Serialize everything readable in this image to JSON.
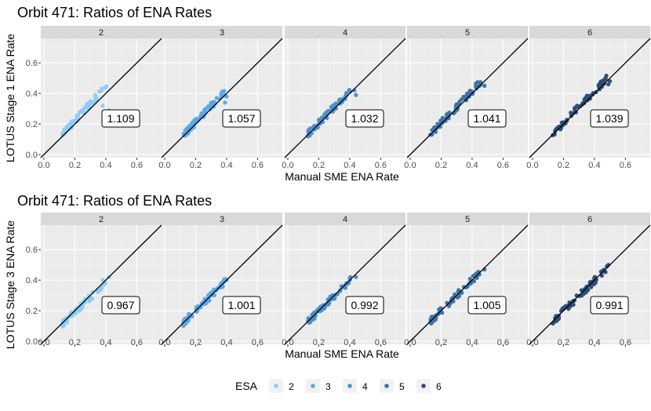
{
  "chart_data": [
    {
      "type": "scatter",
      "title": "Orbit 471: Ratios of ENA Rates",
      "xlabel": "Manual SME ENA Rate",
      "ylabel": "LOTUS Stage 1 ENA Rate",
      "xlim": [
        -0.02,
        0.76
      ],
      "ylim": [
        -0.02,
        0.76
      ],
      "x_ticks": [
        "0.0",
        "0.2",
        "0.4",
        "0.6"
      ],
      "y_ticks": [
        "0.0",
        "0.2",
        "0.4",
        "0.6"
      ],
      "reference_line": "y = x",
      "grid": true,
      "facets": [
        {
          "label": "2",
          "ratio": "1.109",
          "x_range": [
            0.12,
            0.42
          ],
          "slope": 1.109,
          "outliers": [
            [
              0.42,
              0.29
            ],
            [
              0.38,
              0.32
            ]
          ]
        },
        {
          "label": "3",
          "ratio": "1.057",
          "x_range": [
            0.12,
            0.41
          ],
          "slope": 1.057,
          "outliers": [
            [
              0.4,
              0.38
            ],
            [
              0.39,
              0.34
            ]
          ]
        },
        {
          "label": "4",
          "ratio": "1.032",
          "x_range": [
            0.13,
            0.42
          ],
          "slope": 1.032,
          "outliers": [
            [
              0.43,
              0.42
            ],
            [
              0.44,
              0.39
            ]
          ]
        },
        {
          "label": "5",
          "ratio": "1.041",
          "x_range": [
            0.13,
            0.49
          ],
          "slope": 1.041,
          "outliers": [
            [
              0.48,
              0.45
            ]
          ]
        },
        {
          "label": "6",
          "ratio": "1.039",
          "x_range": [
            0.13,
            0.5
          ],
          "slope": 1.039,
          "outliers": [
            [
              0.5,
              0.48
            ],
            [
              0.49,
              0.46
            ]
          ]
        }
      ]
    },
    {
      "type": "scatter",
      "title": "Orbit 471: Ratios of ENA Rates",
      "xlabel": "Manual SME ENA Rate",
      "ylabel": "LOTUS Stage 3 ENA Rate",
      "xlim": [
        -0.02,
        0.76
      ],
      "ylim": [
        -0.02,
        0.76
      ],
      "x_ticks": [
        "0.0",
        "0.2",
        "0.4",
        "0.6"
      ],
      "y_ticks": [
        "0.0",
        "0.2",
        "0.4",
        "0.6"
      ],
      "reference_line": "y = x",
      "grid": true,
      "facets": [
        {
          "label": "2",
          "ratio": "0.967",
          "x_range": [
            0.12,
            0.42
          ],
          "slope": 0.967,
          "outliers": [
            [
              0.42,
              0.42
            ],
            [
              0.38,
              0.4
            ]
          ]
        },
        {
          "label": "3",
          "ratio": "1.001",
          "x_range": [
            0.12,
            0.41
          ],
          "slope": 1.001,
          "outliers": [
            [
              0.4,
              0.4
            ]
          ]
        },
        {
          "label": "4",
          "ratio": "0.992",
          "x_range": [
            0.13,
            0.43
          ],
          "slope": 0.992,
          "outliers": [
            [
              0.44,
              0.42
            ]
          ]
        },
        {
          "label": "5",
          "ratio": "1.005",
          "x_range": [
            0.13,
            0.48
          ],
          "slope": 1.005,
          "outliers": [
            [
              0.48,
              0.47
            ]
          ]
        },
        {
          "label": "6",
          "ratio": "0.991",
          "x_range": [
            0.13,
            0.49
          ],
          "slope": 0.991,
          "outliers": [
            [
              0.48,
              0.49
            ],
            [
              0.49,
              0.5
            ]
          ]
        }
      ]
    }
  ],
  "legend": {
    "title": "ESA",
    "placement": "bottom",
    "items": [
      {
        "label": "2",
        "color": "#8ECDF4"
      },
      {
        "label": "3",
        "color": "#5BA8E6"
      },
      {
        "label": "4",
        "color": "#4B8FCC"
      },
      {
        "label": "5",
        "color": "#3C74A8"
      },
      {
        "label": "6",
        "color": "#2D4E78"
      }
    ]
  },
  "colors": {
    "panel_bg": "#EBEBEB",
    "strip_bg": "#D9D9D9",
    "grid_major": "#FFFFFF",
    "line": "#000000"
  }
}
